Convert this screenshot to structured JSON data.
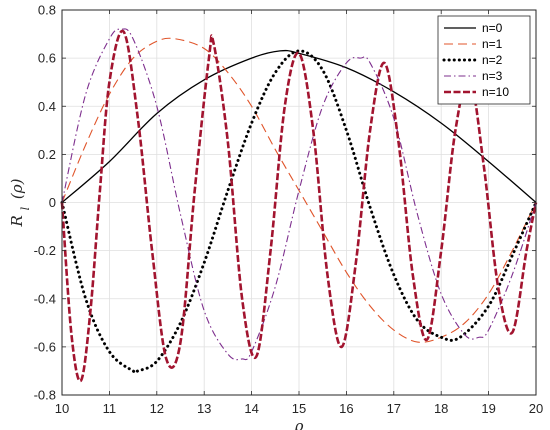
{
  "chart_data": {
    "type": "line",
    "xlabel": "ρ",
    "ylabel_main": "R",
    "ylabel_sub": "l",
    "ylabel_arg": "(ρ)",
    "xlim": [
      10,
      20
    ],
    "ylim": [
      -0.8,
      0.8
    ],
    "xticks": [
      10,
      11,
      12,
      13,
      14,
      15,
      16,
      17,
      18,
      19,
      20
    ],
    "yticks": [
      -0.8,
      -0.6,
      -0.4,
      -0.2,
      0,
      0.2,
      0.4,
      0.6,
      0.8
    ],
    "xtick_labels": [
      "10",
      "11",
      "12",
      "13",
      "14",
      "15",
      "16",
      "17",
      "18",
      "19",
      "20"
    ],
    "ytick_labels": [
      "-0.8",
      "-0.6",
      "-0.4",
      "-0.2",
      "0",
      "0.2",
      "0.4",
      "0.6",
      "0.8"
    ],
    "grid": true,
    "legend_position": "top-right",
    "series": [
      {
        "name": "n=0",
        "color": "#000000",
        "dash": "solid",
        "x": [
          10,
          11,
          12,
          13,
          14,
          14.6,
          15,
          16,
          17,
          18,
          19,
          20
        ],
        "y": [
          0,
          0.17,
          0.37,
          0.51,
          0.6,
          0.63,
          0.62,
          0.56,
          0.46,
          0.33,
          0.17,
          0
        ]
      },
      {
        "name": "n=1",
        "color": "#e0552b",
        "dash": "dash",
        "x": [
          10,
          10.5,
          11,
          11.5,
          12,
          12.4,
          13,
          13.5,
          14,
          14.5,
          15,
          15.5,
          16,
          16.5,
          17,
          17.5,
          18,
          18.5,
          19,
          19.5,
          20
        ],
        "y": [
          0,
          0.24,
          0.45,
          0.6,
          0.67,
          0.68,
          0.64,
          0.54,
          0.4,
          0.22,
          0.05,
          -0.12,
          -0.29,
          -0.43,
          -0.53,
          -0.58,
          -0.56,
          -0.5,
          -0.38,
          -0.2,
          0
        ]
      },
      {
        "name": "n=2",
        "color": "#000000",
        "dash": "dot",
        "x": [
          10,
          10.5,
          11,
          11.5,
          11.6,
          12,
          12.5,
          13,
          13.5,
          14,
          14.5,
          15,
          15.5,
          16,
          16.5,
          17,
          17.5,
          18,
          18.4,
          19,
          19.5,
          20
        ],
        "y": [
          0,
          -0.4,
          -0.62,
          -0.7,
          -0.7,
          -0.66,
          -0.5,
          -0.25,
          0.05,
          0.33,
          0.54,
          0.63,
          0.55,
          0.3,
          -0.02,
          -0.3,
          -0.49,
          -0.56,
          -0.56,
          -0.43,
          -0.22,
          0
        ]
      },
      {
        "name": "n=3",
        "color": "#7e2f8e",
        "dash": "dashdot",
        "x": [
          10,
          10.5,
          11,
          11.25,
          11.5,
          12,
          12.5,
          13,
          13.5,
          13.8,
          14,
          14.5,
          15,
          15.5,
          16,
          16.3,
          16.5,
          17,
          17.5,
          18,
          18.5,
          18.8,
          19,
          19.5,
          20
        ],
        "y": [
          0,
          0.45,
          0.68,
          0.72,
          0.68,
          0.4,
          -0.05,
          -0.45,
          -0.63,
          -0.65,
          -0.62,
          -0.35,
          0.05,
          0.4,
          0.58,
          0.6,
          0.58,
          0.35,
          -0.05,
          -0.38,
          -0.55,
          -0.56,
          -0.53,
          -0.3,
          0
        ]
      },
      {
        "name": "n=10",
        "color": "#a2142f",
        "dash": "dashthick",
        "x": [
          10,
          10.2,
          10.4,
          10.6,
          10.8,
          11,
          11.3,
          11.6,
          11.9,
          12.2,
          12.5,
          12.8,
          13.1,
          13.2,
          13.5,
          13.8,
          14.1,
          14.4,
          14.7,
          15,
          15.3,
          15.6,
          15.9,
          16.2,
          16.5,
          16.8,
          17.1,
          17.4,
          17.7,
          18,
          18.3,
          18.6,
          18.9,
          19.2,
          19.5,
          19.8,
          20
        ],
        "y": [
          0,
          -0.55,
          -0.74,
          -0.45,
          0.05,
          0.5,
          0.71,
          0.35,
          -0.2,
          -0.65,
          -0.58,
          0.05,
          0.6,
          0.66,
          0.25,
          -0.4,
          -0.64,
          -0.2,
          0.4,
          0.62,
          0.3,
          -0.3,
          -0.6,
          -0.25,
          0.3,
          0.58,
          0.25,
          -0.3,
          -0.57,
          -0.2,
          0.3,
          0.52,
          0.15,
          -0.35,
          -0.54,
          -0.2,
          0
        ]
      }
    ]
  }
}
